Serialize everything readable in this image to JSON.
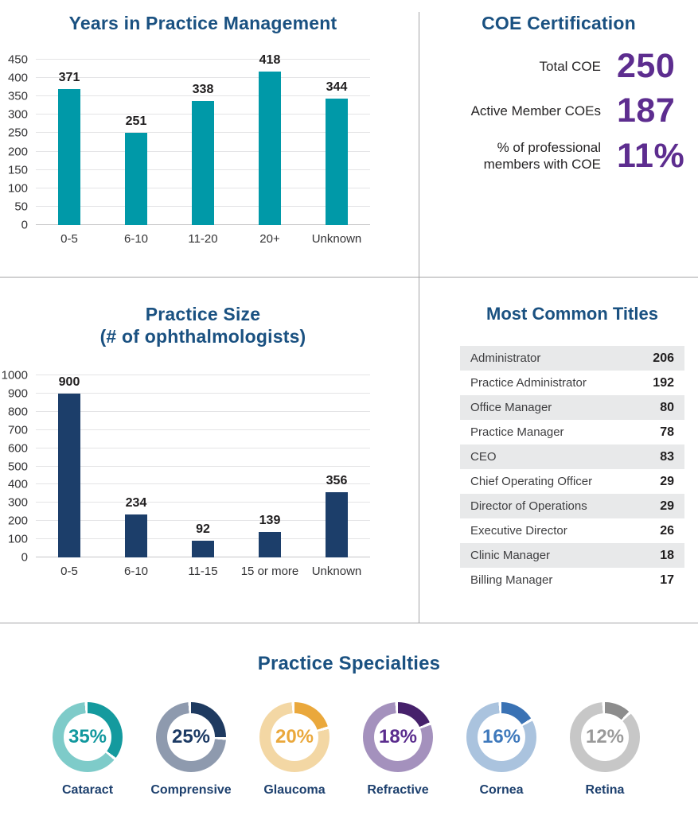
{
  "chart_data": [
    {
      "type": "bar",
      "title": "Years in Practice Management",
      "categories": [
        "0-5",
        "6-10",
        "11-20",
        "20+",
        "Unknown"
      ],
      "values": [
        371,
        251,
        338,
        418,
        344
      ],
      "xlabel": "",
      "ylabel": "",
      "ylim": [
        0,
        450
      ],
      "ytick_step": 50,
      "grid": true,
      "legend": "none",
      "bar_color": "#0099a8"
    },
    {
      "type": "bar",
      "title": "Practice Size",
      "subtitle": "(# of ophthalmologists)",
      "categories": [
        "0-5",
        "6-10",
        "11-15",
        "15 or more",
        "Unknown"
      ],
      "values": [
        900,
        234,
        92,
        139,
        356
      ],
      "xlabel": "",
      "ylabel": "",
      "ylim": [
        0,
        1000
      ],
      "ytick_step": 100,
      "grid": true,
      "legend": "none",
      "bar_color": "#1c3e6a"
    },
    {
      "type": "pie",
      "variant": "donut-multiples",
      "title": "Practice Specialties",
      "slices": [
        {
          "label": "Cataract",
          "pct": 35,
          "dark": "#149a9e",
          "light": "#7ecbc9",
          "text": "#12989e"
        },
        {
          "label": "Comprensive",
          "pct": 25,
          "dark": "#1e3a60",
          "light": "#8e9aae",
          "text": "#1c3a64"
        },
        {
          "label": "Glaucoma",
          "pct": 20,
          "dark": "#eaa83c",
          "light": "#f3d7a4",
          "text": "#eaa83c"
        },
        {
          "label": "Refractive",
          "pct": 18,
          "dark": "#46216b",
          "light": "#a491bd",
          "text": "#5b2d8e"
        },
        {
          "label": "Cornea",
          "pct": 16,
          "dark": "#3a72b4",
          "light": "#aac3de",
          "text": "#3f79bc"
        },
        {
          "label": "Retina",
          "pct": 12,
          "dark": "#8d8d8d",
          "light": "#c7c7c7",
          "text": "#9a9a9a"
        }
      ]
    },
    {
      "type": "table",
      "title": "Most Common Titles",
      "rows": [
        {
          "label": "Administrator",
          "value": "206"
        },
        {
          "label": "Practice Administrator",
          "value": "192"
        },
        {
          "label": "Office Manager",
          "value": "80"
        },
        {
          "label": "Practice Manager",
          "value": "78"
        },
        {
          "label": "CEO",
          "value": "83"
        },
        {
          "label": "Chief Operating Officer",
          "value": "29"
        },
        {
          "label": "Director of Operations",
          "value": "29"
        },
        {
          "label": "Executive Director",
          "value": "26"
        },
        {
          "label": "Clinic Manager",
          "value": "18"
        },
        {
          "label": "Billing Manager",
          "value": "17"
        }
      ]
    },
    {
      "type": "table",
      "title": "COE Certification",
      "rows": [
        {
          "label": "Total COE",
          "value": "250"
        },
        {
          "label": "Active Member COEs",
          "value": "187"
        },
        {
          "label": "% of professional\nmembers with COE",
          "value": "11%"
        }
      ]
    }
  ],
  "colors": {
    "heading_blue": "#1a5181",
    "teal_bar": "#0099a8",
    "navy_bar": "#1c3e6a",
    "stat_purple": "#5d2d8f",
    "table_alt_row": "#e8e9ea",
    "divider": "#a5a5a7"
  }
}
